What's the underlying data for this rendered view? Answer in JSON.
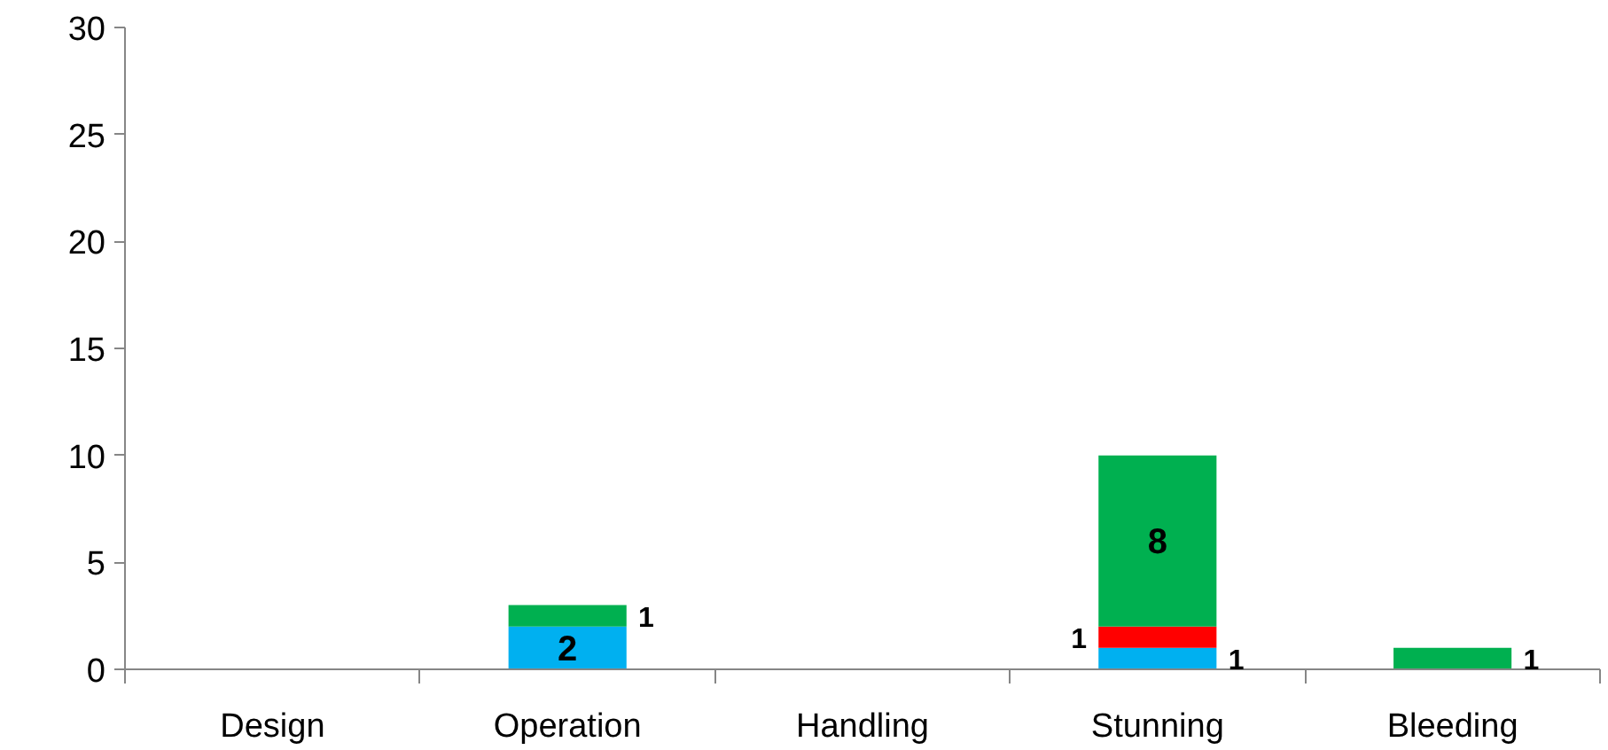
{
  "chart_data": {
    "type": "bar",
    "stacked": true,
    "categories": [
      "Design",
      "Operation",
      "Handling",
      "Stunning",
      "Bleeding"
    ],
    "series": [
      {
        "color": "#00b0f0",
        "values": [
          null,
          2,
          null,
          1,
          null
        ],
        "value_labels": [
          null,
          "2",
          null,
          "1",
          null
        ]
      },
      {
        "color": "#ff0000",
        "values": [
          null,
          null,
          null,
          1,
          null
        ],
        "value_labels": [
          null,
          null,
          null,
          "1",
          null
        ]
      },
      {
        "color": "#00b050",
        "values": [
          null,
          1,
          null,
          8,
          1
        ],
        "value_labels": [
          null,
          "1",
          null,
          "8",
          "1"
        ]
      }
    ],
    "ylim": [
      0,
      30
    ],
    "yticks": [
      0,
      5,
      10,
      15,
      20,
      25,
      30
    ],
    "grid": false
  }
}
